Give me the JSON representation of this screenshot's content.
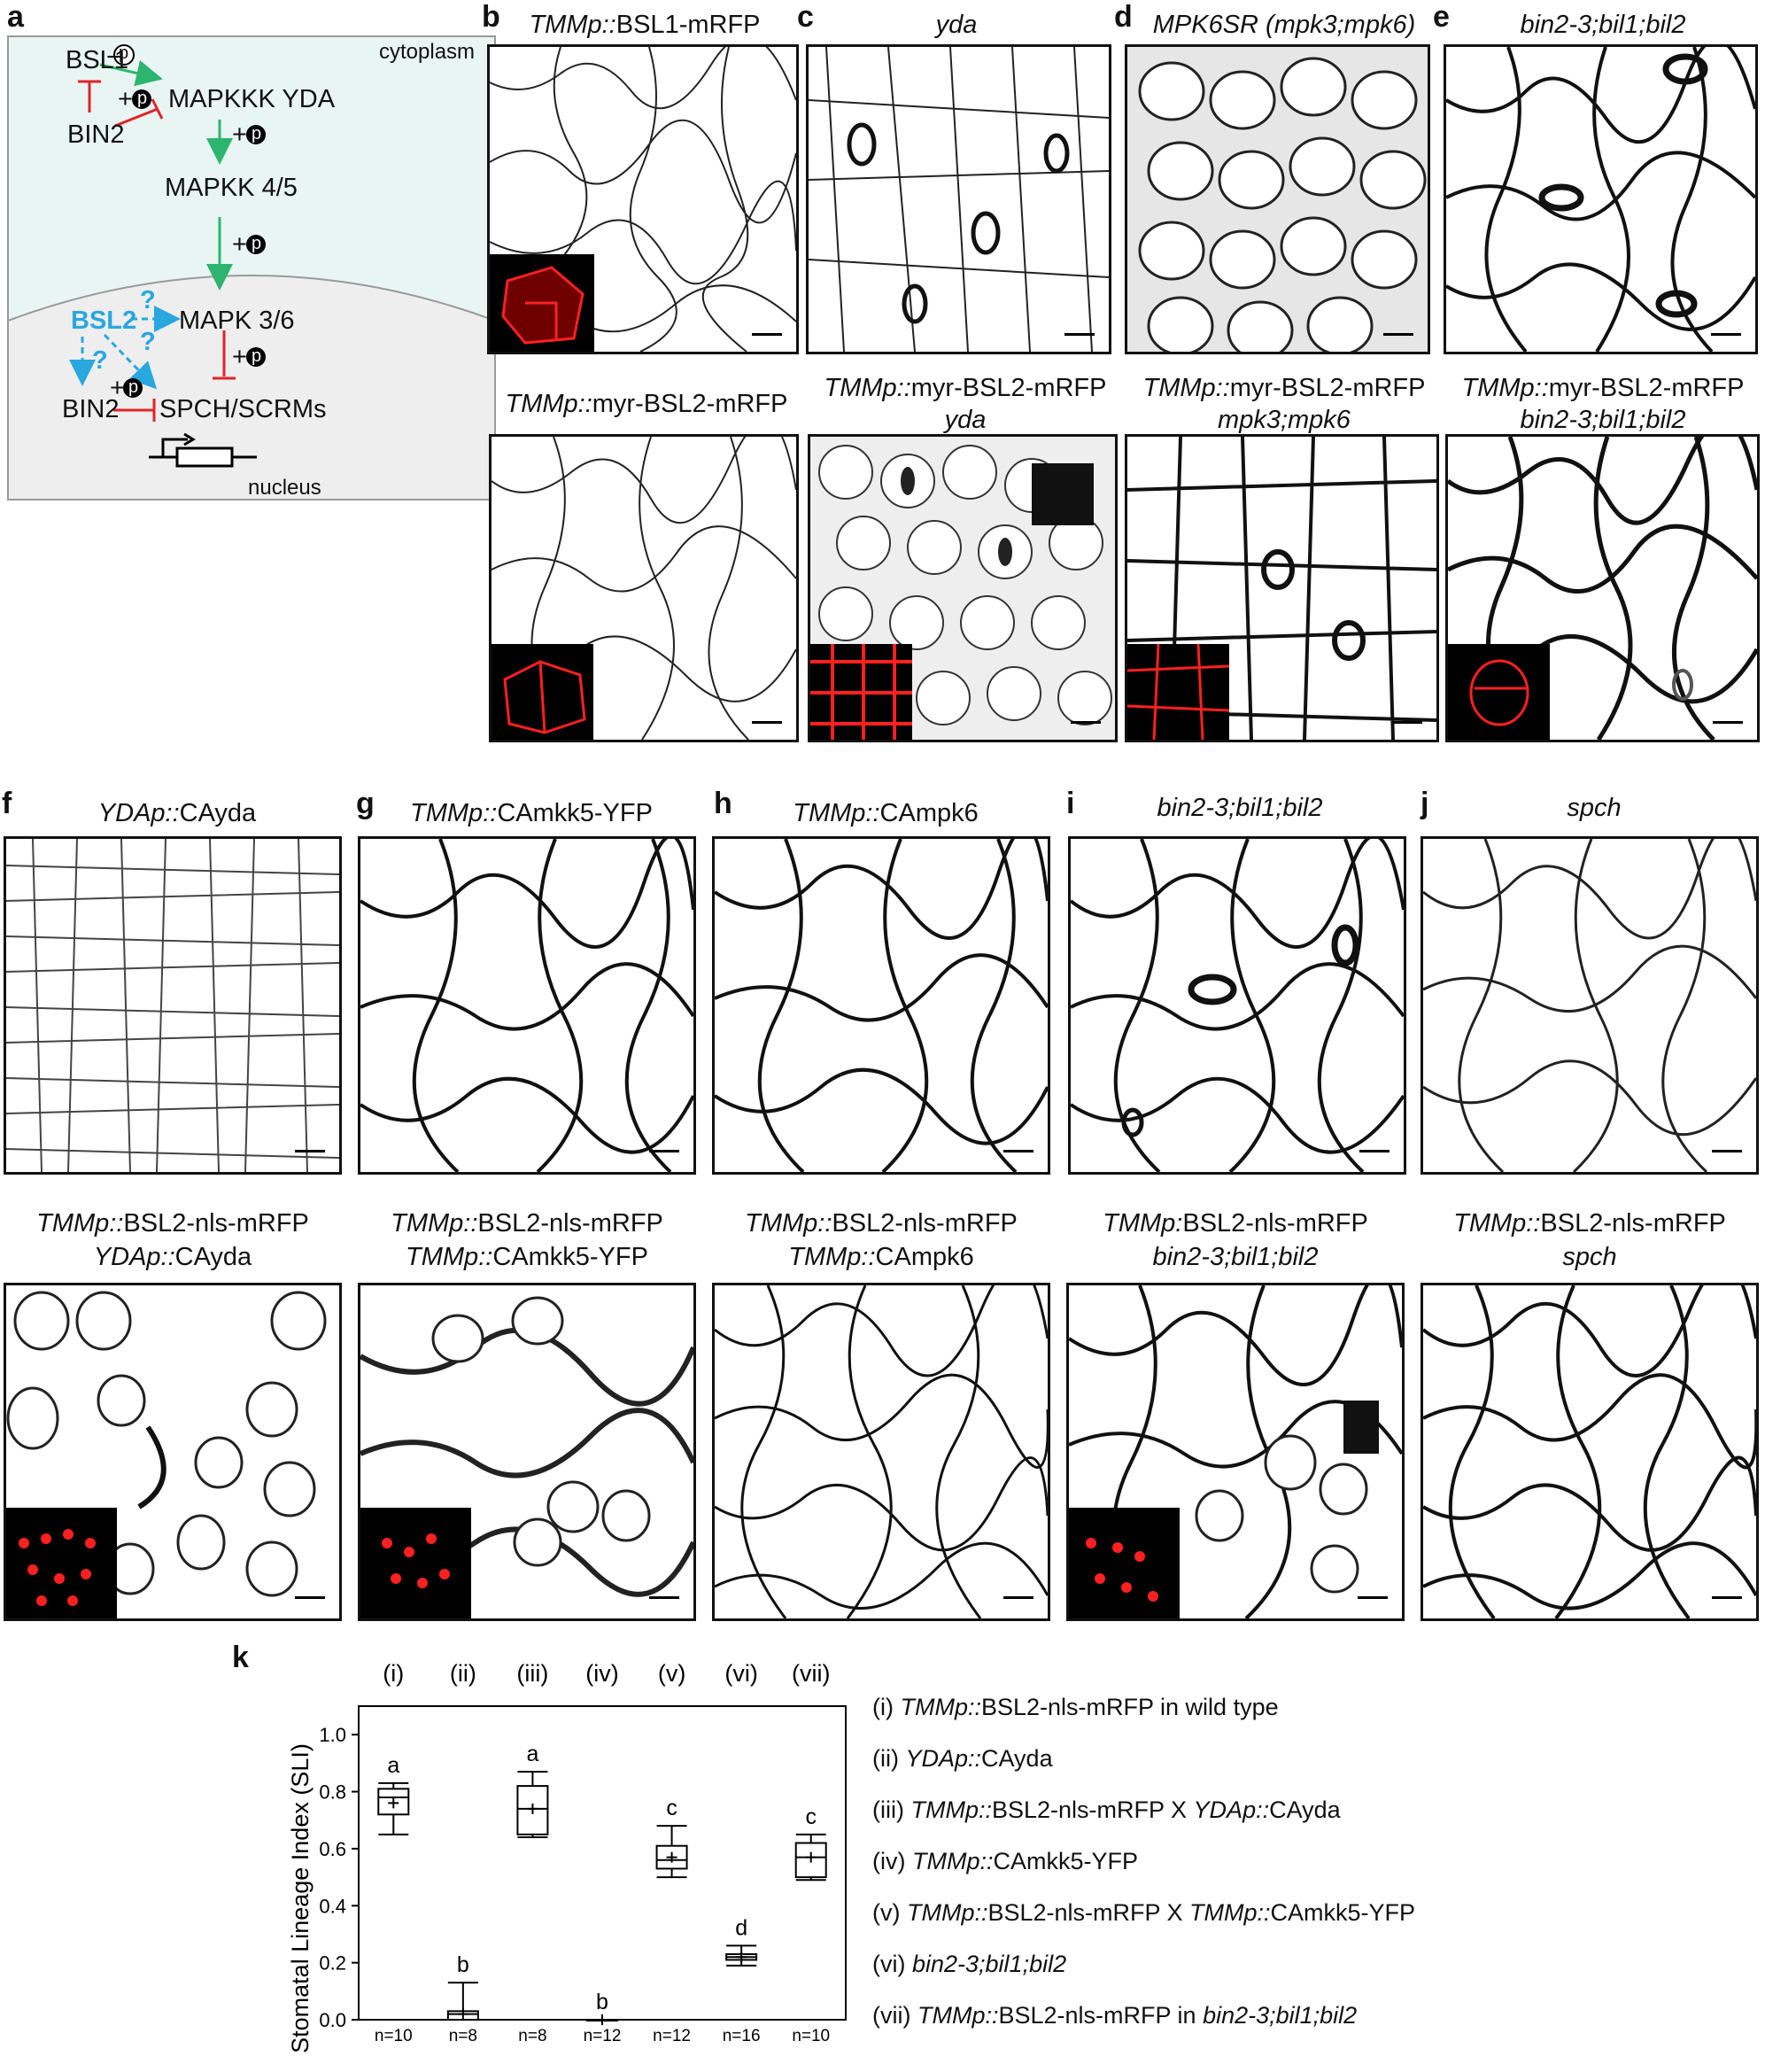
{
  "panel_labels": {
    "a": "a",
    "b": "b",
    "c": "c",
    "d": "d",
    "e": "e",
    "f": "f",
    "g": "g",
    "h": "h",
    "i": "i",
    "j": "j",
    "k": "k"
  },
  "diagram": {
    "cytoplasm": "cytoplasm",
    "nucleus": "nucleus",
    "bsl1": "BSL1",
    "bin2_top": "BIN2",
    "yda": "MAPKKK YDA",
    "mkk": "MAPKK 4/5",
    "mpk": "MAPK 3/6",
    "bsl2": "BSL2",
    "bin2_bottom": "BIN2",
    "spch": "SPCH/SCRMs",
    "minus_p": "−",
    "plus": "+",
    "p": "p",
    "q": "?",
    "colors": {
      "cytoplasm_bg": "#e8f5f3",
      "nucleus_bg": "#eeeeee",
      "green": "#2db46e",
      "red": "#e0242a",
      "blue": "#29a7df"
    }
  },
  "top_titles": {
    "b1": {
      "a": "TMMp::",
      "b": "BSL1-mRFP"
    },
    "c1": {
      "a": "yda",
      "b": ""
    },
    "d1": {
      "a": "MPK6SR (mpk3;mpk6)",
      "b": ""
    },
    "e1": {
      "a": "bin2-3;bil1;bil2",
      "b": ""
    },
    "b2": {
      "a": "TMMp::",
      "b": "myr-BSL2-mRFP"
    },
    "c2": {
      "a": "TMMp::",
      "b": "myr-BSL2-mRFP",
      "c": "yda"
    },
    "d2": {
      "a": "TMMp::",
      "b": "myr-BSL2-mRFP",
      "c": "mpk3;mpk6"
    },
    "e2": {
      "a": "TMMp::",
      "b": "myr-BSL2-mRFP",
      "c": "bin2-3;bil1;bil2"
    }
  },
  "mid_titles": {
    "f1": {
      "a": "YDAp::",
      "b": "CAyda"
    },
    "g1": {
      "a": "TMMp::",
      "b": "CAmkk5-YFP"
    },
    "h1": {
      "a": "TMMp::",
      "b": "CAmpk6"
    },
    "i1": {
      "a": "bin2-3;bil1;bil2",
      "b": ""
    },
    "j1": {
      "a": "spch",
      "b": ""
    },
    "f2": {
      "a": "TMMp::",
      "b": "BSL2-nls-mRFP",
      "c": "YDAp::",
      "d": "CAyda"
    },
    "g2": {
      "a": "TMMp::",
      "b": "BSL2-nls-mRFP",
      "c": "TMMp::",
      "d": "CAmkk5-YFP"
    },
    "h2": {
      "a": "TMMp::",
      "b": "BSL2-nls-mRFP",
      "c": "TMMp::",
      "d": "CAmpk6"
    },
    "i2": {
      "a": "TMMp:",
      "b": "BSL2-nls-mRFP",
      "c": "bin2-3;bil1;bil2",
      "d": ""
    },
    "j2": {
      "a": "TMMp::",
      "b": "BSL2-nls-mRFP",
      "c": "spch",
      "d": ""
    }
  },
  "chart_data": {
    "type": "box",
    "ylabel": "Stomatal Lineage Index (SLI)",
    "ylim": [
      0.0,
      1.1
    ],
    "yticks": [
      "0.0",
      "0.2",
      "0.4",
      "0.6",
      "0.8",
      "1.0"
    ],
    "ytick_values": [
      0.0,
      0.2,
      0.4,
      0.6,
      0.8,
      1.0
    ],
    "categories": [
      "(i)",
      "(ii)",
      "(iii)",
      "(iv)",
      "(v)",
      "(vi)",
      "(vii)"
    ],
    "n_labels": [
      "n=10",
      "n=8",
      "n=8",
      "n=12",
      "n=12",
      "n=16",
      "n=10"
    ],
    "letters": [
      "a",
      "b",
      "a",
      "b",
      "c",
      "d",
      "c"
    ],
    "boxes": [
      {
        "min": 0.65,
        "q1": 0.72,
        "median": 0.78,
        "q3": 0.81,
        "max": 0.83,
        "mean": 0.76
      },
      {
        "min": 0.0,
        "q1": 0.0,
        "median": 0.02,
        "q3": 0.03,
        "max": 0.13,
        "mean": 0.02
      },
      {
        "min": 0.64,
        "q1": 0.65,
        "median": 0.74,
        "q3": 0.82,
        "max": 0.87,
        "mean": 0.74
      },
      {
        "min": 0.0,
        "q1": 0.0,
        "median": 0.0,
        "q3": 0.0,
        "max": 0.0,
        "mean": 0.0
      },
      {
        "min": 0.5,
        "q1": 0.53,
        "median": 0.56,
        "q3": 0.61,
        "max": 0.68,
        "mean": 0.57
      },
      {
        "min": 0.19,
        "q1": 0.21,
        "median": 0.22,
        "q3": 0.23,
        "max": 0.26,
        "mean": 0.22
      },
      {
        "min": 0.49,
        "q1": 0.5,
        "median": 0.57,
        "q3": 0.62,
        "max": 0.65,
        "mean": 0.57
      }
    ],
    "legend": [
      {
        "num": "(i)",
        "parts": [
          {
            "t": "TMMp::",
            "i": true
          },
          {
            "t": "BSL2-nls-mRFP in wild type",
            "i": false
          }
        ]
      },
      {
        "num": "(ii)",
        "parts": [
          {
            "t": "YDAp::",
            "i": true
          },
          {
            "t": "CAyda",
            "i": false
          }
        ]
      },
      {
        "num": "(iii)",
        "parts": [
          {
            "t": "TMMp::",
            "i": true
          },
          {
            "t": "BSL2-nls-mRFP X ",
            "i": false
          },
          {
            "t": "YDAp::",
            "i": true
          },
          {
            "t": "CAyda",
            "i": false
          }
        ]
      },
      {
        "num": "(iv)",
        "parts": [
          {
            "t": "TMMp::",
            "i": true
          },
          {
            "t": "CAmkk5-YFP",
            "i": false
          }
        ]
      },
      {
        "num": "(v)",
        "parts": [
          {
            "t": "TMMp::",
            "i": true
          },
          {
            "t": "BSL2-nls-mRFP X ",
            "i": false
          },
          {
            "t": "TMMp::",
            "i": true
          },
          {
            "t": "CAmkk5-YFP",
            "i": false
          }
        ]
      },
      {
        "num": "(vi)",
        "parts": [
          {
            "t": "bin2-3;bil1;bil2",
            "i": true
          }
        ]
      },
      {
        "num": "(vii)",
        "parts": [
          {
            "t": "TMMp::",
            "i": true
          },
          {
            "t": "BSL2-nls-mRFP in ",
            "i": false
          },
          {
            "t": "bin2-3;bil1;bil2",
            "i": true
          }
        ]
      }
    ]
  }
}
